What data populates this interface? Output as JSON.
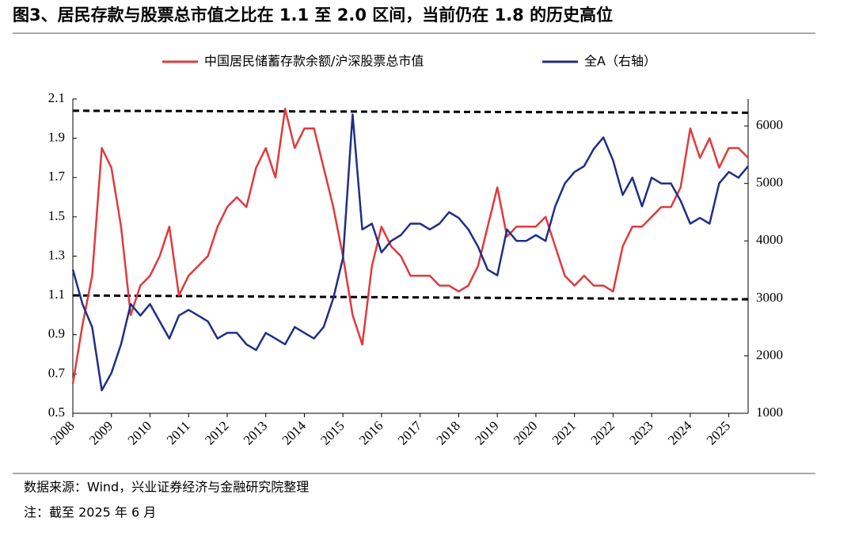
{
  "chart_data": {
    "type": "line",
    "title": "图3、居民存款与股票总市值之比在 1.1 至 2.0 区间，当前仍在 1.8 的历史高位",
    "source": "数据来源：Wind，兴业证券经济与金融研究院整理",
    "note": "注：截至 2025 年 6 月",
    "x": [
      2008,
      2008.25,
      2008.5,
      2008.75,
      2009,
      2009.25,
      2009.5,
      2009.75,
      2010,
      2010.25,
      2010.5,
      2010.75,
      2011,
      2011.25,
      2011.5,
      2011.75,
      2012,
      2012.25,
      2012.5,
      2012.75,
      2013,
      2013.25,
      2013.5,
      2013.75,
      2014,
      2014.25,
      2014.5,
      2014.75,
      2015,
      2015.25,
      2015.5,
      2015.75,
      2016,
      2016.25,
      2016.5,
      2016.75,
      2017,
      2017.25,
      2017.5,
      2017.75,
      2018,
      2018.25,
      2018.5,
      2018.75,
      2019,
      2019.25,
      2019.5,
      2019.75,
      2020,
      2020.25,
      2020.5,
      2020.75,
      2021,
      2021.25,
      2021.5,
      2021.75,
      2022,
      2022.25,
      2022.5,
      2022.75,
      2023,
      2023.25,
      2023.5,
      2023.75,
      2024,
      2024.25,
      2024.5,
      2024.75,
      2025,
      2025.25,
      2025.5
    ],
    "series": [
      {
        "name": "中国居民储蓄存款余额/沪深股票总市值",
        "color": "#e03a3e",
        "values": [
          0.65,
          0.95,
          1.2,
          1.85,
          1.75,
          1.45,
          1.0,
          1.15,
          1.2,
          1.3,
          1.45,
          1.1,
          1.2,
          1.25,
          1.3,
          1.45,
          1.55,
          1.6,
          1.55,
          1.75,
          1.85,
          1.7,
          2.05,
          1.85,
          1.95,
          1.95,
          1.75,
          1.55,
          1.3,
          1.0,
          0.85,
          1.25,
          1.45,
          1.35,
          1.3,
          1.2,
          1.2,
          1.2,
          1.15,
          1.15,
          1.12,
          1.15,
          1.25,
          1.45,
          1.65,
          1.4,
          1.45,
          1.45,
          1.45,
          1.5,
          1.35,
          1.2,
          1.15,
          1.2,
          1.15,
          1.15,
          1.12,
          1.35,
          1.45,
          1.45,
          1.5,
          1.55,
          1.55,
          1.65,
          1.95,
          1.8,
          1.9,
          1.75,
          1.85,
          1.85,
          1.8
        ]
      },
      {
        "name": "全A（右轴）",
        "color": "#1f2f86",
        "axis": "y2",
        "values": [
          3500,
          2900,
          2500,
          1400,
          1700,
          2200,
          2900,
          2700,
          2900,
          2600,
          2300,
          2700,
          2800,
          2700,
          2600,
          2300,
          2400,
          2400,
          2200,
          2100,
          2400,
          2300,
          2200,
          2500,
          2400,
          2300,
          2500,
          3000,
          3700,
          6200,
          4200,
          4300,
          3800,
          4000,
          4100,
          4300,
          4300,
          4200,
          4300,
          4500,
          4400,
          4200,
          3900,
          3500,
          3400,
          4200,
          4000,
          4000,
          4100,
          4000,
          4600,
          5000,
          5200,
          5300,
          5600,
          5800,
          5400,
          4800,
          5100,
          4600,
          5100,
          5000,
          5000,
          4700,
          4300,
          4400,
          4300,
          5000,
          5200,
          5100,
          5300
        ]
      }
    ],
    "reference_lines": [
      {
        "x": [
          2008,
          2025.5
        ],
        "values": [
          2.04,
          2.03
        ],
        "color": "#000000",
        "dashed": true
      },
      {
        "x": [
          2008,
          2025.5
        ],
        "values": [
          1.1,
          1.08
        ],
        "color": "#000000",
        "dashed": true
      }
    ],
    "xlim": [
      2008,
      2025.5
    ],
    "xticks": [
      2008,
      2009,
      2010,
      2011,
      2012,
      2013,
      2014,
      2015,
      2016,
      2017,
      2018,
      2019,
      2020,
      2021,
      2022,
      2023,
      2024,
      2025
    ],
    "ylim": [
      0.5,
      2.1
    ],
    "yticks": [
      0.5,
      0.7,
      0.9,
      1.1,
      1.3,
      1.5,
      1.7,
      1.9,
      2.1
    ],
    "y2lim": [
      1000,
      6470
    ],
    "y2ticks": [
      1000,
      2000,
      3000,
      4000,
      5000,
      6000
    ]
  }
}
